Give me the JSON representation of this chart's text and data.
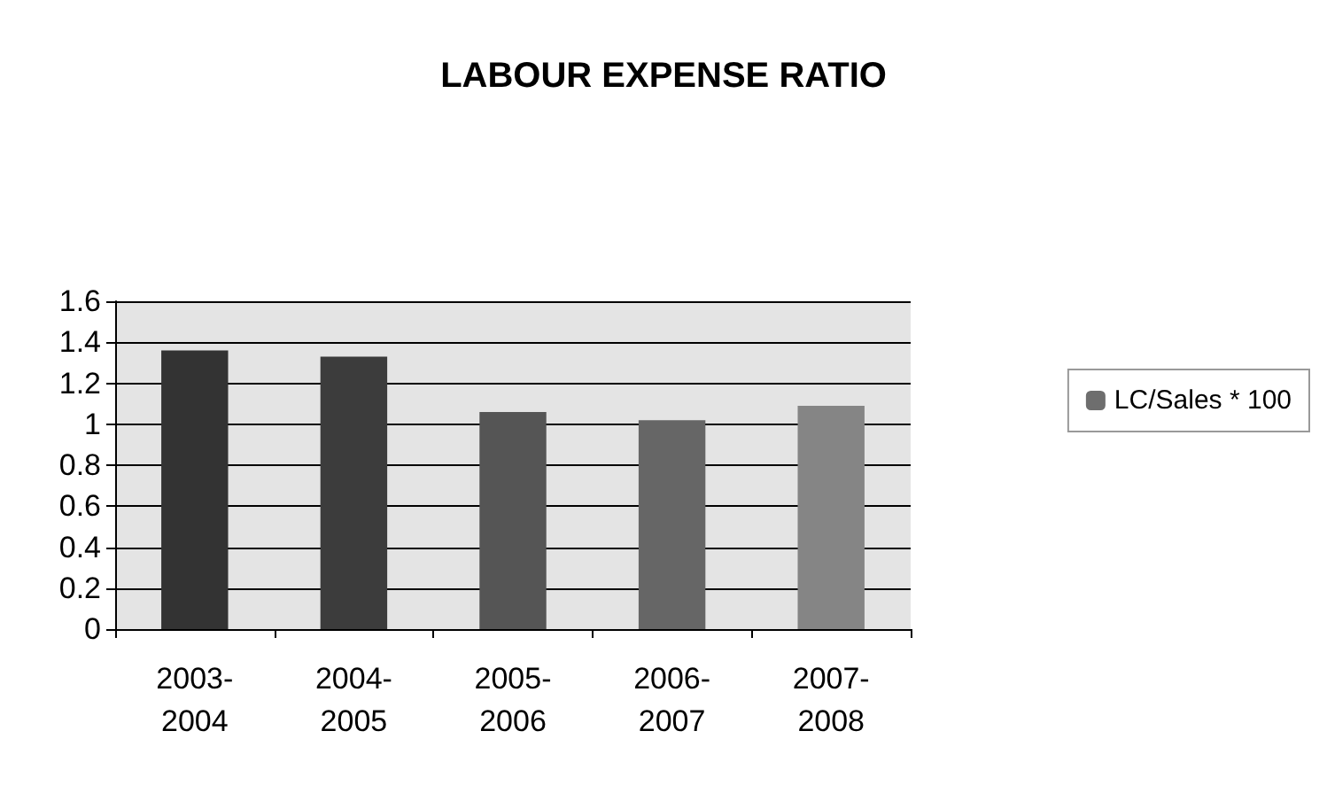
{
  "chart_data": {
    "type": "bar",
    "title": "LABOUR EXPENSE RATIO",
    "categories": [
      "2003-2004",
      "2004-2005",
      "2005-2006",
      "2006-2007",
      "2007-2008"
    ],
    "series": [
      {
        "name": "LC/Sales * 100",
        "color": "#6e6e6e",
        "colors": [
          "#333333",
          "#3c3c3c",
          "#555555",
          "#666666",
          "#858585"
        ],
        "values": [
          1.36,
          1.33,
          1.06,
          1.02,
          1.09
        ]
      }
    ],
    "ylim": [
      0,
      1.6
    ],
    "yticks": [
      0,
      0.2,
      0.4,
      0.6,
      0.8,
      1,
      1.2,
      1.4,
      1.6
    ],
    "grid": "y",
    "legend": "right"
  }
}
